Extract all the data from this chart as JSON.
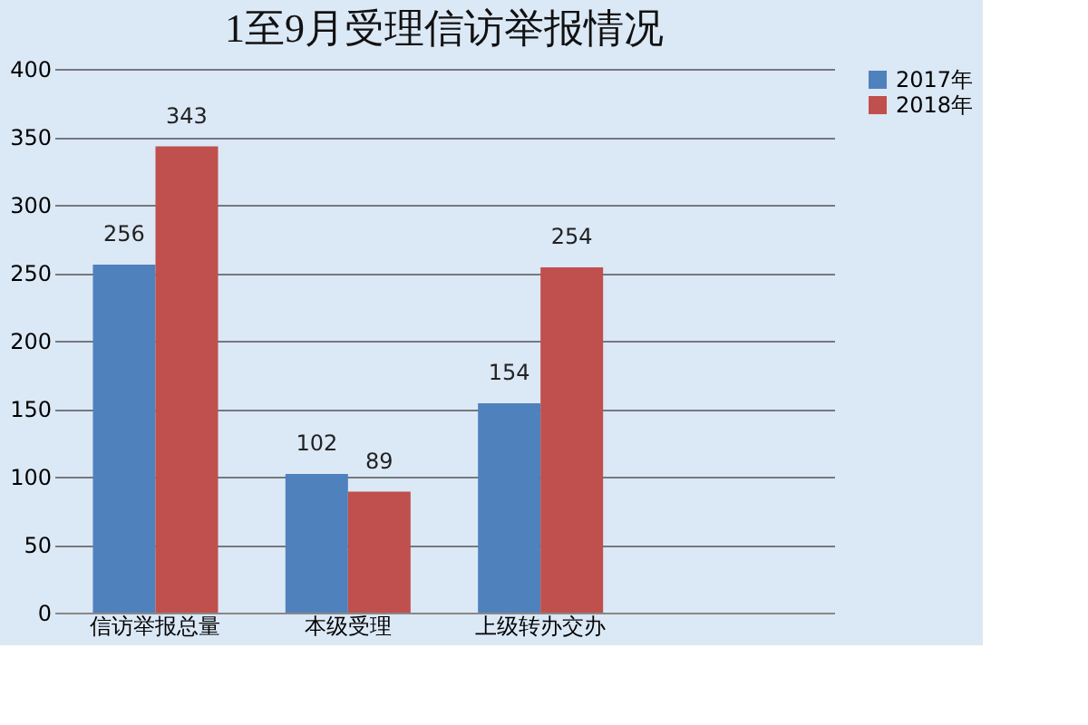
{
  "chart_data": {
    "type": "bar",
    "title": "1至9月受理信访举报情况",
    "categories": [
      "信访举报总量",
      "本级受理",
      "上级转办交办",
      null
    ],
    "series": [
      {
        "name": "2017年",
        "color": "#4f81bd",
        "values": [
          256,
          102,
          154,
          null
        ]
      },
      {
        "name": "2018年",
        "color": "#c0504d",
        "values": [
          343,
          89,
          254,
          null
        ]
      }
    ],
    "ylim": [
      0,
      400
    ],
    "yticks": [
      0,
      50,
      100,
      150,
      200,
      250,
      300,
      350,
      400
    ],
    "grid": "y",
    "legend": "right",
    "data_labels": true
  }
}
